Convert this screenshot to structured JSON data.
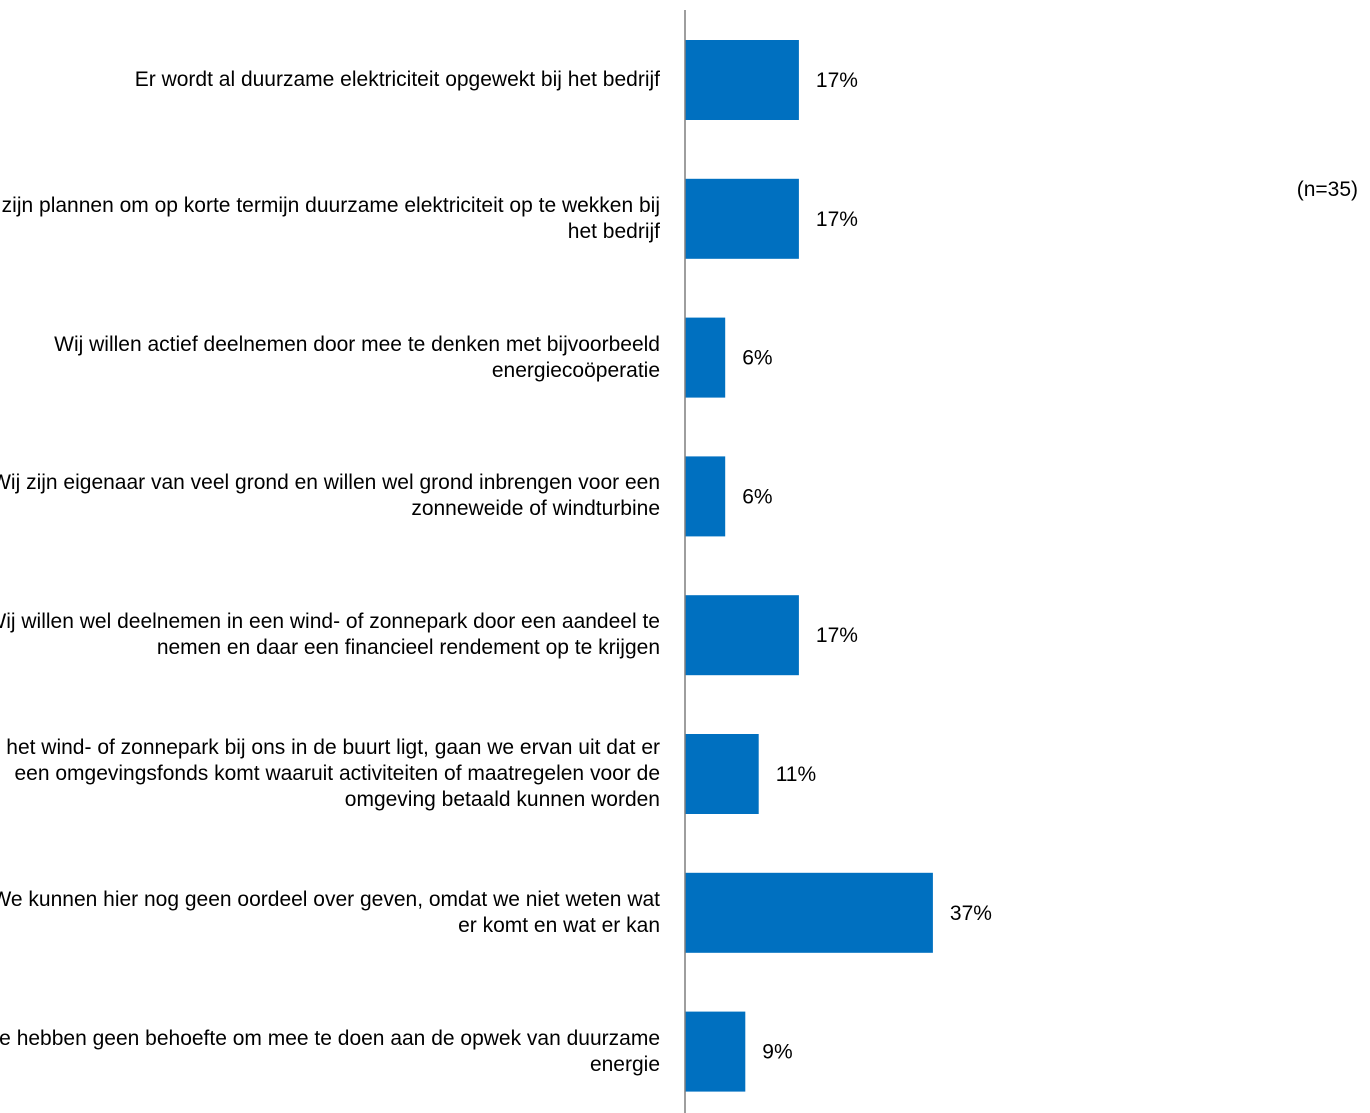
{
  "chart_data": {
    "type": "bar",
    "orientation": "horizontal",
    "categories": [
      "Er wordt al duurzame elektriciteit opgewekt bij het bedrijf",
      "Er zijn plannen om op korte termijn duurzame elektriciteit op te wekken bij het bedrijf",
      "Wij willen actief deelnemen door mee te denken met bijvoorbeeld energiecoöperatie",
      "Wij zijn eigenaar van veel grond en willen wel grond inbrengen voor een zonneweide of windturbine",
      "Wij willen wel deelnemen in een wind- of zonnepark door een aandeel te nemen en daar een financieel rendement op te krijgen",
      "Als het wind- of zonnepark bij ons in de buurt ligt, gaan we ervan uit dat er een omgevingsfonds komt waaruit activiteiten of maatregelen voor de omgeving betaald kunnen worden",
      "We kunnen hier nog geen oordeel over geven, omdat we niet weten wat er komt en wat er kan",
      "We hebben geen behoefte om mee te doen aan de opwek van duurzame energie"
    ],
    "values": [
      17,
      17,
      6,
      6,
      17,
      11,
      37,
      9
    ],
    "value_labels": [
      "17%",
      "17%",
      "6%",
      "6%",
      "17%",
      "11%",
      "37%",
      "9%"
    ],
    "unit": "%",
    "xlim": [
      0,
      100
    ],
    "grid": false,
    "legend": "none",
    "note": "(n=35)",
    "colors": {
      "bar": "#0070C0",
      "axis": "#7F7F7F",
      "text": "#000000",
      "background": "#FFFFFF"
    }
  }
}
